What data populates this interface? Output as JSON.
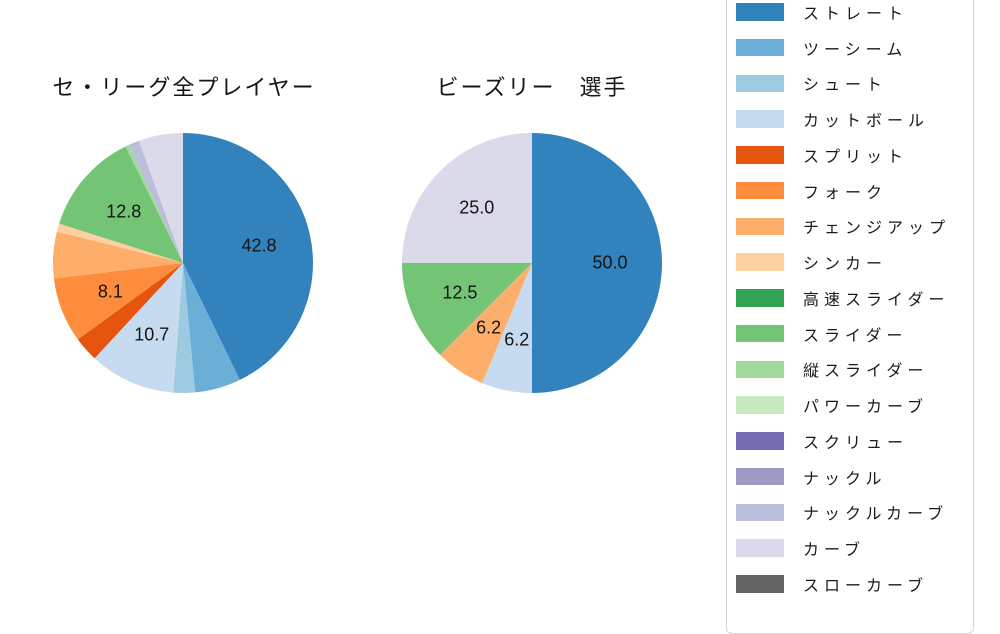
{
  "chart_data": [
    {
      "type": "pie",
      "id": "league-all-players",
      "title": "セ・リーグ全プレイヤー",
      "direction": "clockwise-from-top",
      "label_radius_ratio": 0.6,
      "slices": [
        {
          "name": "ストレート",
          "value": 42.8,
          "label": "42.8",
          "color": "#3182bd"
        },
        {
          "name": "ツーシーム",
          "value": 5.7,
          "label": null,
          "color": "#6baed6"
        },
        {
          "name": "シュート",
          "value": 2.7,
          "label": null,
          "color": "#9ecae1"
        },
        {
          "name": "カットボール",
          "value": 10.7,
          "label": "10.7",
          "color": "#c6dbef"
        },
        {
          "name": "スプリット",
          "value": 3.1,
          "label": null,
          "color": "#e6550d"
        },
        {
          "name": "フォーク",
          "value": 8.1,
          "label": "8.1",
          "color": "#fd8d3c"
        },
        {
          "name": "チェンジアップ",
          "value": 5.8,
          "label": null,
          "color": "#fdae6b"
        },
        {
          "name": "シンカー",
          "value": 1.0,
          "label": null,
          "color": "#fdd0a2"
        },
        {
          "name": "スライダー",
          "value": 12.8,
          "label": "12.8",
          "color": "#74c476"
        },
        {
          "name": "縦スライダー",
          "value": 0.5,
          "label": null,
          "color": "#a1d99b"
        },
        {
          "name": "ナックルカーブ",
          "value": 1.3,
          "label": null,
          "color": "#bcbddc"
        },
        {
          "name": "カーブ",
          "value": 5.5,
          "label": null,
          "color": "#dadaeb"
        }
      ]
    },
    {
      "type": "pie",
      "id": "player-beasley",
      "title": "ビーズリー　選手",
      "direction": "clockwise-from-top",
      "label_radius_ratio": 0.6,
      "slices": [
        {
          "name": "ストレート",
          "value": 50.0,
          "label": "50.0",
          "color": "#3182bd"
        },
        {
          "name": "カットボール",
          "value": 6.25,
          "label": "6.2",
          "color": "#c6dbef"
        },
        {
          "name": "チェンジアップ",
          "value": 6.25,
          "label": "6.2",
          "color": "#fdae6b"
        },
        {
          "name": "スライダー",
          "value": 12.5,
          "label": "12.5",
          "color": "#74c476"
        },
        {
          "name": "カーブ",
          "value": 25.0,
          "label": "25.0",
          "color": "#dadaeb"
        }
      ]
    }
  ],
  "legend": {
    "items": [
      {
        "label": "ストレート",
        "color": "#3182bd"
      },
      {
        "label": "ツーシーム",
        "color": "#6baed6"
      },
      {
        "label": "シュート",
        "color": "#9ecae1"
      },
      {
        "label": "カットボール",
        "color": "#c6dbef"
      },
      {
        "label": "スプリット",
        "color": "#e6550d"
      },
      {
        "label": "フォーク",
        "color": "#fd8d3c"
      },
      {
        "label": "チェンジアップ",
        "color": "#fdae6b"
      },
      {
        "label": "シンカー",
        "color": "#fdd0a2"
      },
      {
        "label": "高速スライダー",
        "color": "#31a354"
      },
      {
        "label": "スライダー",
        "color": "#74c476"
      },
      {
        "label": "縦スライダー",
        "color": "#a1d99b"
      },
      {
        "label": "パワーカーブ",
        "color": "#c7e9c0"
      },
      {
        "label": "スクリュー",
        "color": "#756bb1"
      },
      {
        "label": "ナックル",
        "color": "#9e9ac8"
      },
      {
        "label": "ナックルカーブ",
        "color": "#bcbddc"
      },
      {
        "label": "カーブ",
        "color": "#dadaeb"
      },
      {
        "label": "スローカーブ",
        "color": "#636363"
      }
    ]
  }
}
